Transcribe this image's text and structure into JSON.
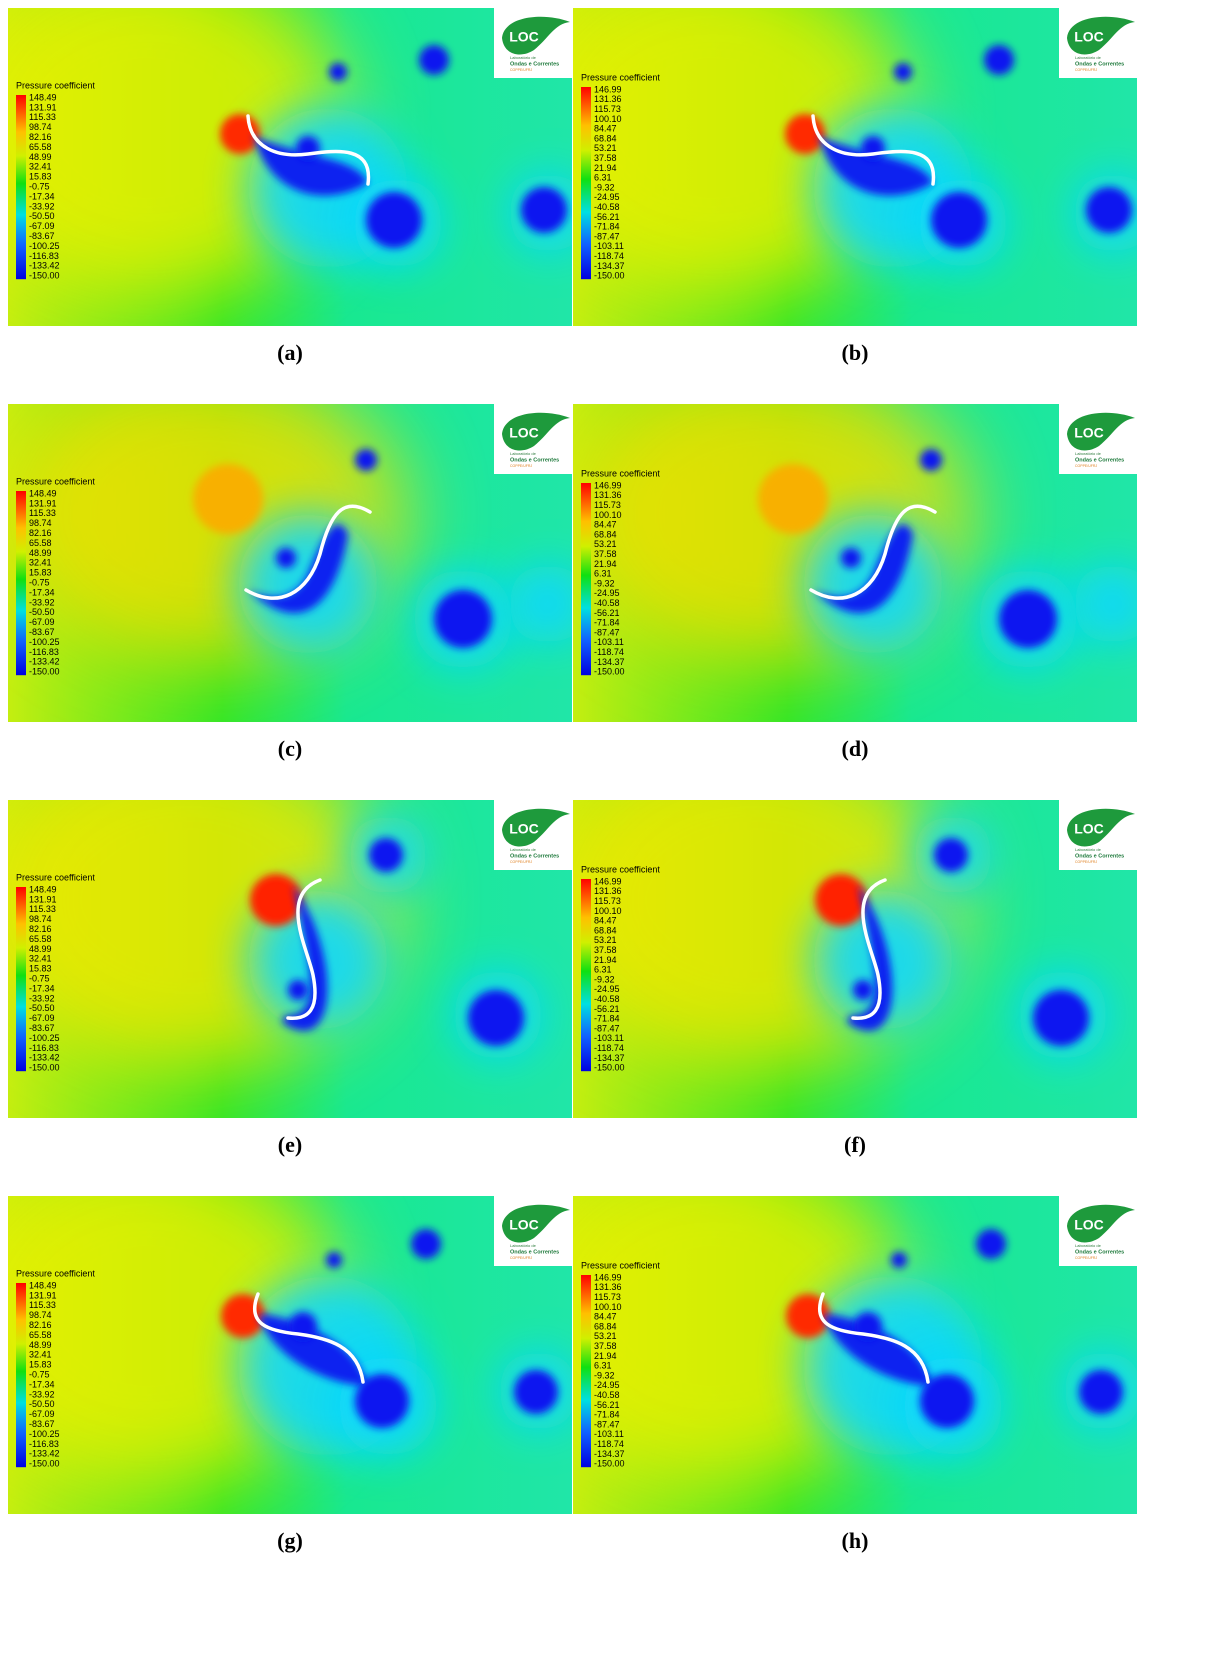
{
  "logo": {
    "mark": "LOC",
    "line1": "Laboratório de",
    "line2": "Ondas e Correntes",
    "line3": "COPPE/UFRJ"
  },
  "panels": [
    {
      "caption": "(a)",
      "legend_title": "Pressure coefficient",
      "legend_labels": [
        "148.49",
        "131.91",
        "115.33",
        "98.74",
        "82.16",
        "65.58",
        "48.99",
        "32.41",
        "15.83",
        "-0.75",
        "-17.34",
        "-33.92",
        "-50.50",
        "-67.09",
        "-83.67",
        "-100.25",
        "-116.83",
        "-133.42",
        "-150.00"
      ]
    },
    {
      "caption": "(b)",
      "legend_title": "Pressure coefficient",
      "legend_labels": [
        "146.99",
        "131.36",
        "115.73",
        "100.10",
        "84.47",
        "68.84",
        "53.21",
        "37.58",
        "21.94",
        "6.31",
        "-9.32",
        "-24.95",
        "-40.58",
        "-56.21",
        "-71.84",
        "-87.47",
        "-103.11",
        "-118.74",
        "-134.37",
        "-150.00"
      ]
    },
    {
      "caption": "(c)",
      "legend_title": "Pressure coefficient",
      "legend_labels": [
        "148.49",
        "131.91",
        "115.33",
        "98.74",
        "82.16",
        "65.58",
        "48.99",
        "32.41",
        "15.83",
        "-0.75",
        "-17.34",
        "-33.92",
        "-50.50",
        "-67.09",
        "-83.67",
        "-100.25",
        "-116.83",
        "-133.42",
        "-150.00"
      ]
    },
    {
      "caption": "(d)",
      "legend_title": "Pressure coefficient",
      "legend_labels": [
        "146.99",
        "131.36",
        "115.73",
        "100.10",
        "84.47",
        "68.84",
        "53.21",
        "37.58",
        "21.94",
        "6.31",
        "-9.32",
        "-24.95",
        "-40.58",
        "-56.21",
        "-71.84",
        "-87.47",
        "-103.11",
        "-118.74",
        "-134.37",
        "-150.00"
      ]
    },
    {
      "caption": "(e)",
      "legend_title": "Pressure coefficient",
      "legend_labels": [
        "148.49",
        "131.91",
        "115.33",
        "98.74",
        "82.16",
        "65.58",
        "48.99",
        "32.41",
        "15.83",
        "-0.75",
        "-17.34",
        "-33.92",
        "-50.50",
        "-67.09",
        "-83.67",
        "-100.25",
        "-116.83",
        "-133.42",
        "-150.00"
      ]
    },
    {
      "caption": "(f)",
      "legend_title": "Pressure coefficient",
      "legend_labels": [
        "146.99",
        "131.36",
        "115.73",
        "100.10",
        "84.47",
        "68.84",
        "53.21",
        "37.58",
        "21.94",
        "6.31",
        "-9.32",
        "-24.95",
        "-40.58",
        "-56.21",
        "-71.84",
        "-87.47",
        "-103.11",
        "-118.74",
        "-134.37",
        "-150.00"
      ]
    },
    {
      "caption": "(g)",
      "legend_title": "Pressure coefficient",
      "legend_labels": [
        "148.49",
        "131.91",
        "115.33",
        "98.74",
        "82.16",
        "65.58",
        "48.99",
        "32.41",
        "15.83",
        "-0.75",
        "-17.34",
        "-33.92",
        "-50.50",
        "-67.09",
        "-83.67",
        "-100.25",
        "-116.83",
        "-133.42",
        "-150.00"
      ]
    },
    {
      "caption": "(h)",
      "legend_title": "Pressure coefficient",
      "legend_labels": [
        "146.99",
        "131.36",
        "115.73",
        "100.10",
        "84.47",
        "68.84",
        "53.21",
        "37.58",
        "21.94",
        "6.31",
        "-9.32",
        "-24.95",
        "-40.58",
        "-56.21",
        "-71.84",
        "-87.47",
        "-103.11",
        "-118.74",
        "-134.37",
        "-150.00"
      ]
    }
  ]
}
